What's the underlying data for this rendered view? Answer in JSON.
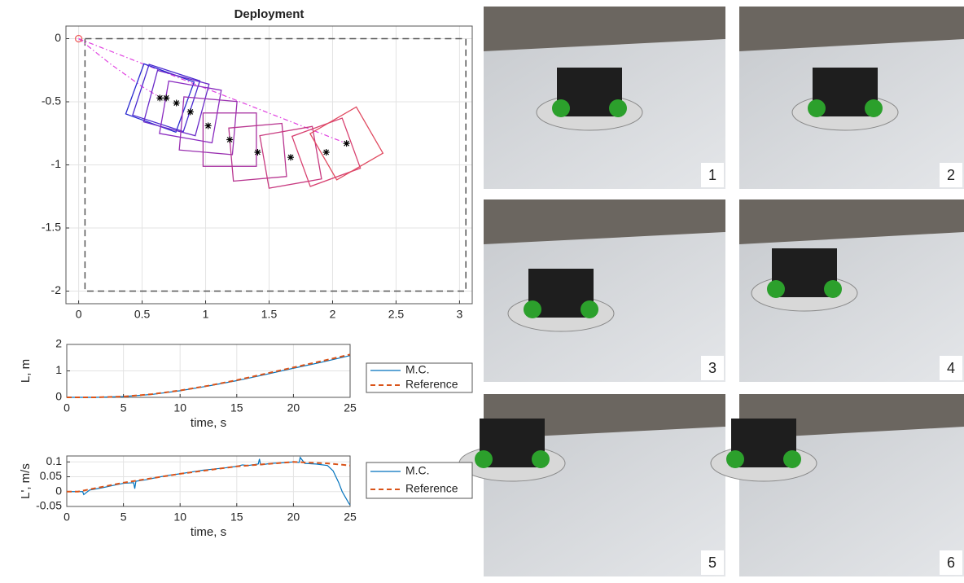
{
  "chart_data": [
    {
      "type": "trajectory",
      "title": "Deployment",
      "xlim": [
        -0.1,
        3.1
      ],
      "ylim": [
        -2.1,
        0.1
      ],
      "xticks": [
        0,
        0.5,
        1,
        1.5,
        2,
        2.5,
        3
      ],
      "yticks": [
        0,
        -0.5,
        -1,
        -1.5,
        -2
      ],
      "grid": true,
      "boundary": {
        "x": [
          0.05,
          3.05,
          3.05,
          0.05,
          0.05
        ],
        "y": [
          0,
          0,
          -2,
          -2,
          0
        ],
        "color": "#555555"
      },
      "tether": {
        "color": "#e040e0",
        "lines": [
          {
            "x": [
              0,
              0.25,
              0.5,
              0.65
            ],
            "y": [
              0,
              -0.2,
              -0.38,
              -0.47
            ]
          },
          {
            "x": [
              0,
              2.11
            ],
            "y": [
              0,
              -0.83
            ]
          }
        ]
      },
      "start": {
        "x": 0,
        "y": 0,
        "color": "#f06060"
      },
      "robots": {
        "x": [
          0.64,
          0.69,
          0.77,
          0.88,
          1.02,
          1.19,
          1.41,
          1.67,
          1.95,
          2.11
        ],
        "y": [
          -0.47,
          -0.47,
          -0.51,
          -0.58,
          -0.69,
          -0.8,
          -0.9,
          -0.94,
          -0.9,
          -0.83
        ],
        "angle": [
          -20,
          -18,
          -15,
          -10,
          -5,
          0,
          5,
          10,
          20,
          30
        ],
        "size": 0.42,
        "colors": [
          "#2a2ad0",
          "#4a2ad0",
          "#6a2ac8",
          "#8a2ac0",
          "#9a30b0",
          "#a830a0",
          "#b83590",
          "#c83a80",
          "#d84070",
          "#e04a60"
        ]
      }
    },
    {
      "type": "line",
      "xlabel": "time, s",
      "ylabel": "L, m",
      "xlim": [
        0,
        25
      ],
      "ylim": [
        0,
        2
      ],
      "xticks": [
        0,
        5,
        10,
        15,
        20,
        25
      ],
      "yticks": [
        0,
        1,
        2
      ],
      "grid": true,
      "series": [
        {
          "name": "M.C.",
          "color": "#0072bd",
          "dash": false,
          "x": [
            0,
            2.5,
            5,
            7.5,
            10,
            12.5,
            15,
            17.5,
            20,
            22.5,
            25
          ],
          "values": [
            0,
            0,
            0.03,
            0.11,
            0.25,
            0.43,
            0.63,
            0.86,
            1.1,
            1.33,
            1.58
          ]
        },
        {
          "name": "Reference",
          "color": "#d95319",
          "dash": true,
          "x": [
            0,
            2.5,
            5,
            7.5,
            10,
            12.5,
            15,
            17.5,
            20,
            22.5,
            25
          ],
          "values": [
            0,
            0,
            0.03,
            0.12,
            0.26,
            0.44,
            0.65,
            0.89,
            1.13,
            1.37,
            1.62
          ]
        }
      ]
    },
    {
      "type": "line",
      "xlabel": "time, s",
      "ylabel": "L', m/s",
      "xlim": [
        0,
        25
      ],
      "ylim": [
        -0.05,
        0.12
      ],
      "xticks": [
        0,
        5,
        10,
        15,
        20,
        25
      ],
      "yticks": [
        -0.05,
        0,
        0.05,
        0.1
      ],
      "grid": true,
      "series": [
        {
          "name": "M.C.",
          "color": "#0072bd",
          "dash": false,
          "x": [
            0,
            1,
            1.4,
            1.5,
            2,
            3,
            4,
            5,
            5.9,
            6,
            6.1,
            7,
            8,
            9,
            10,
            11,
            12,
            13,
            14,
            15,
            15.5,
            16,
            16.9,
            17,
            17.1,
            18,
            19,
            20,
            20.5,
            20.6,
            21,
            22,
            23,
            23.5,
            24,
            24.3,
            24.6,
            24.9,
            25
          ],
          "values": [
            0,
            0,
            0,
            -0.01,
            0.005,
            0.012,
            0.02,
            0.028,
            0.03,
            0.01,
            0.035,
            0.04,
            0.048,
            0.055,
            0.06,
            0.066,
            0.072,
            0.076,
            0.08,
            0.085,
            0.09,
            0.088,
            0.093,
            0.11,
            0.09,
            0.095,
            0.097,
            0.1,
            0.098,
            0.115,
            0.095,
            0.093,
            0.088,
            0.07,
            0.03,
            0,
            -0.02,
            -0.04,
            -0.045
          ]
        },
        {
          "name": "Reference",
          "color": "#d95319",
          "dash": true,
          "x": [
            0,
            1,
            5,
            10,
            15,
            20,
            23,
            25
          ],
          "values": [
            0,
            0,
            0.03,
            0.06,
            0.085,
            0.1,
            0.095,
            0.088
          ]
        }
      ]
    }
  ],
  "photos": {
    "labels": [
      "1",
      "2",
      "3",
      "4",
      "5",
      "6"
    ]
  }
}
